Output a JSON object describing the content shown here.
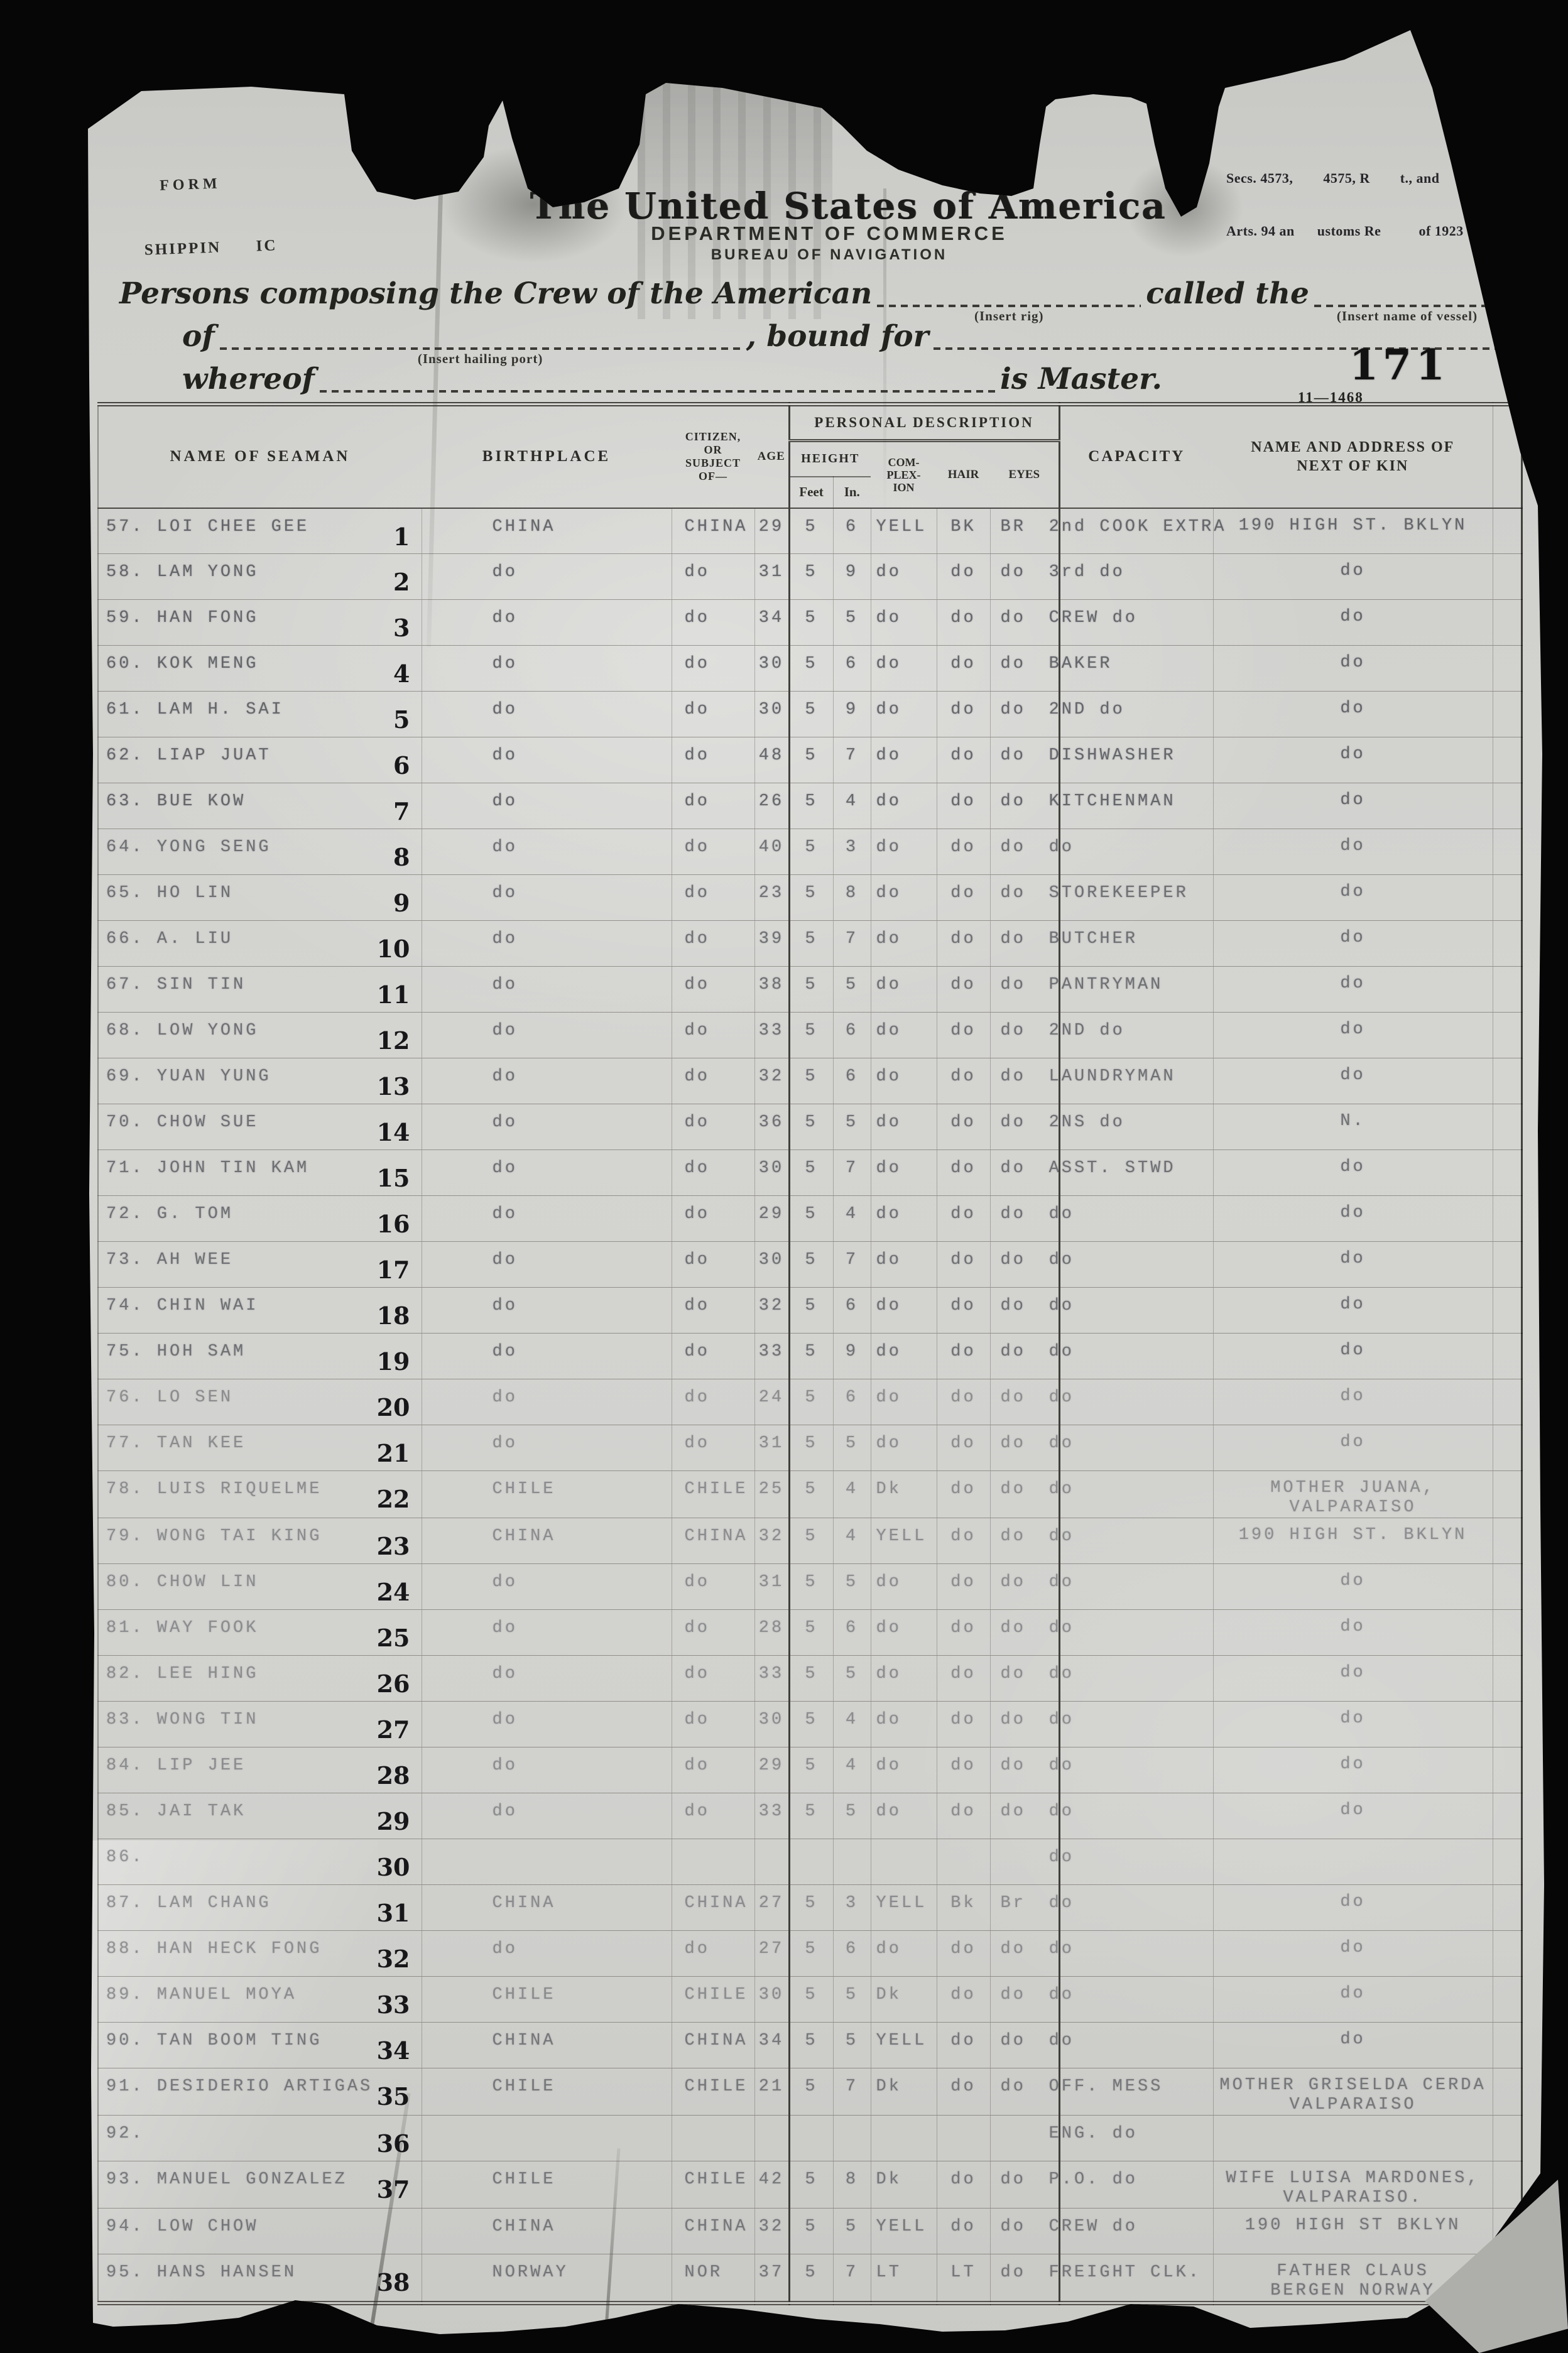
{
  "page": {
    "background": "#060606",
    "paper_color": "#d0d0cc",
    "page_number": "171",
    "form_code": "11—1468"
  },
  "stamps": {
    "form_line1": "FORM",
    "form_line2": "SHIPPIN      IC",
    "regs_line1": "Secs. 4573,        4575, R        t., and",
    "regs_line2": "Arts. 94 an      ustoms Re          of 1923"
  },
  "letterhead": {
    "title": "The United States of America",
    "department": "DEPARTMENT OF COMMERCE",
    "bureau": "BUREAU OF NAVIGATION"
  },
  "preamble": {
    "line1_pre": "Persons composing the Crew of the American",
    "insert_rig": "(Insert rig)",
    "line1_mid": "called the",
    "insert_vessel": "(Insert name of vessel)",
    "line2_pre": "of",
    "insert_port": "(Insert hailing port)",
    "line2_mid": ", bound for",
    "line3_pre": "whereof",
    "line3_end": "is Master."
  },
  "table": {
    "headers": {
      "name": "NAME OF SEAMAN",
      "birthplace": "BIRTHPLACE",
      "citizen": "CITIZEN,\nOR\nSUBJECT\nOF—",
      "age": "AGE",
      "personal": "PERSONAL DESCRIPTION",
      "height": "HEIGHT",
      "feet": "Feet",
      "inches": "In.",
      "complexion": "COM-\nPLEX-\nION",
      "hair": "HAIR",
      "eyes": "EYES",
      "capacity": "CAPACITY",
      "kin": "NAME AND ADDRESS OF\nNEXT OF KIN"
    },
    "rows": [
      {
        "name": "57. LOI CHEE GEE",
        "seq": "1",
        "birthplace": "CHINA",
        "citizen": "CHINA",
        "age": "29",
        "feet": "5",
        "inches": "6",
        "complexion": "YELL",
        "hair": "BK",
        "eyes": "BR",
        "capacity": "2nd COOK EXTRA",
        "kin": "190 HIGH ST. BKLYN"
      },
      {
        "name": "58. LAM YONG",
        "seq": "2",
        "birthplace": "do",
        "citizen": "do",
        "age": "31",
        "feet": "5",
        "inches": "9",
        "complexion": "do",
        "hair": "do",
        "eyes": "do",
        "capacity": "3rd do",
        "kin": "do"
      },
      {
        "name": "59. HAN FONG",
        "seq": "3",
        "birthplace": "do",
        "citizen": "do",
        "age": "34",
        "feet": "5",
        "inches": "5",
        "complexion": "do",
        "hair": "do",
        "eyes": "do",
        "capacity": "CREW do",
        "kin": "do"
      },
      {
        "name": "60. KOK MENG",
        "seq": "4",
        "birthplace": "do",
        "citizen": "do",
        "age": "30",
        "feet": "5",
        "inches": "6",
        "complexion": "do",
        "hair": "do",
        "eyes": "do",
        "capacity": "BAKER",
        "kin": "do"
      },
      {
        "name": "61. LAM H. SAI",
        "seq": "5",
        "birthplace": "do",
        "citizen": "do",
        "age": "30",
        "feet": "5",
        "inches": "9",
        "complexion": "do",
        "hair": "do",
        "eyes": "do",
        "capacity": "2ND do",
        "kin": "do"
      },
      {
        "name": "62. LIAP JUAT",
        "seq": "6",
        "birthplace": "do",
        "citizen": "do",
        "age": "48",
        "feet": "5",
        "inches": "7",
        "complexion": "do",
        "hair": "do",
        "eyes": "do",
        "capacity": "DISHWASHER",
        "kin": "do"
      },
      {
        "name": "63. BUE KOW",
        "seq": "7",
        "birthplace": "do",
        "citizen": "do",
        "age": "26",
        "feet": "5",
        "inches": "4",
        "complexion": "do",
        "hair": "do",
        "eyes": "do",
        "capacity": "KITCHENMAN",
        "kin": "do"
      },
      {
        "name": "64. YONG SENG",
        "seq": "8",
        "birthplace": "do",
        "citizen": "do",
        "age": "40",
        "feet": "5",
        "inches": "3",
        "complexion": "do",
        "hair": "do",
        "eyes": "do",
        "capacity": "do",
        "kin": "do"
      },
      {
        "name": "65. HO LIN",
        "seq": "9",
        "birthplace": "do",
        "citizen": "do",
        "age": "23",
        "feet": "5",
        "inches": "8",
        "complexion": "do",
        "hair": "do",
        "eyes": "do",
        "capacity": "STOREKEEPER",
        "kin": "do"
      },
      {
        "name": "66. A. LIU",
        "seq": "10",
        "birthplace": "do",
        "citizen": "do",
        "age": "39",
        "feet": "5",
        "inches": "7",
        "complexion": "do",
        "hair": "do",
        "eyes": "do",
        "capacity": "BUTCHER",
        "kin": "do"
      },
      {
        "name": "67. SIN TIN",
        "seq": "11",
        "birthplace": "do",
        "citizen": "do",
        "age": "38",
        "feet": "5",
        "inches": "5",
        "complexion": "do",
        "hair": "do",
        "eyes": "do",
        "capacity": "PANTRYMAN",
        "kin": "do"
      },
      {
        "name": "68. LOW YONG",
        "seq": "12",
        "birthplace": "do",
        "citizen": "do",
        "age": "33",
        "feet": "5",
        "inches": "6",
        "complexion": "do",
        "hair": "do",
        "eyes": "do",
        "capacity": "2ND do",
        "kin": "do"
      },
      {
        "name": "69. YUAN YUNG",
        "seq": "13",
        "birthplace": "do",
        "citizen": "do",
        "age": "32",
        "feet": "5",
        "inches": "6",
        "complexion": "do",
        "hair": "do",
        "eyes": "do",
        "capacity": "LAUNDRYMAN",
        "kin": "do"
      },
      {
        "name": "70. CHOW SUE",
        "seq": "14",
        "birthplace": "do",
        "citizen": "do",
        "age": "36",
        "feet": "5",
        "inches": "5",
        "complexion": "do",
        "hair": "do",
        "eyes": "do",
        "capacity": "2NS do",
        "kin": "N."
      },
      {
        "name": "71. JOHN TIN KAM",
        "seq": "15",
        "birthplace": "do",
        "citizen": "do",
        "age": "30",
        "feet": "5",
        "inches": "7",
        "complexion": "do",
        "hair": "do",
        "eyes": "do",
        "capacity": "ASST. STWD",
        "kin": "do"
      },
      {
        "name": "72. G. TOM",
        "seq": "16",
        "birthplace": "do",
        "citizen": "do",
        "age": "29",
        "feet": "5",
        "inches": "4",
        "complexion": "do",
        "hair": "do",
        "eyes": "do",
        "capacity": "do",
        "kin": "do"
      },
      {
        "name": "73. AH WEE",
        "seq": "17",
        "birthplace": "do",
        "citizen": "do",
        "age": "30",
        "feet": "5",
        "inches": "7",
        "complexion": "do",
        "hair": "do",
        "eyes": "do",
        "capacity": "do",
        "kin": "do"
      },
      {
        "name": "74. CHIN WAI",
        "seq": "18",
        "birthplace": "do",
        "citizen": "do",
        "age": "32",
        "feet": "5",
        "inches": "6",
        "complexion": "do",
        "hair": "do",
        "eyes": "do",
        "capacity": "do",
        "kin": "do"
      },
      {
        "name": "75. HOH SAM",
        "seq": "19",
        "birthplace": "do",
        "citizen": "do",
        "age": "33",
        "feet": "5",
        "inches": "9",
        "complexion": "do",
        "hair": "do",
        "eyes": "do",
        "capacity": "do",
        "kin": "do"
      },
      {
        "name": "76. LO SEN",
        "seq": "20",
        "birthplace": "do",
        "citizen": "do",
        "age": "24",
        "feet": "5",
        "inches": "6",
        "complexion": "do",
        "hair": "do",
        "eyes": "do",
        "capacity": "do",
        "kin": "do"
      },
      {
        "name": "77. TAN KEE",
        "seq": "21",
        "birthplace": "do",
        "citizen": "do",
        "age": "31",
        "feet": "5",
        "inches": "5",
        "complexion": "do",
        "hair": "do",
        "eyes": "do",
        "capacity": "do",
        "kin": "do"
      },
      {
        "name": "78. LUIS RIQUELME",
        "seq": "22",
        "birthplace": "CHILE",
        "citizen": "CHILE",
        "age": "25",
        "feet": "5",
        "inches": "4",
        "complexion": "Dk",
        "hair": "do",
        "eyes": "do",
        "capacity": "do",
        "kin": "MOTHER JUANA,\nVALPARAISO"
      },
      {
        "name": "79. WONG TAI KING",
        "seq": "23",
        "birthplace": "CHINA",
        "citizen": "CHINA",
        "age": "32",
        "feet": "5",
        "inches": "4",
        "complexion": "YELL",
        "hair": "do",
        "eyes": "do",
        "capacity": "do",
        "kin": "190 HIGH ST. BKLYN"
      },
      {
        "name": "80. CHOW LIN",
        "seq": "24",
        "birthplace": "do",
        "citizen": "do",
        "age": "31",
        "feet": "5",
        "inches": "5",
        "complexion": "do",
        "hair": "do",
        "eyes": "do",
        "capacity": "do",
        "kin": "do"
      },
      {
        "name": "81. WAY FOOK",
        "seq": "25",
        "birthplace": "do",
        "citizen": "do",
        "age": "28",
        "feet": "5",
        "inches": "6",
        "complexion": "do",
        "hair": "do",
        "eyes": "do",
        "capacity": "do",
        "kin": "do"
      },
      {
        "name": "82. LEE HING",
        "seq": "26",
        "birthplace": "do",
        "citizen": "do",
        "age": "33",
        "feet": "5",
        "inches": "5",
        "complexion": "do",
        "hair": "do",
        "eyes": "do",
        "capacity": "do",
        "kin": "do"
      },
      {
        "name": "83. WONG TIN",
        "seq": "27",
        "birthplace": "do",
        "citizen": "do",
        "age": "30",
        "feet": "5",
        "inches": "4",
        "complexion": "do",
        "hair": "do",
        "eyes": "do",
        "capacity": "do",
        "kin": "do"
      },
      {
        "name": "84. LIP JEE",
        "seq": "28",
        "birthplace": "do",
        "citizen": "do",
        "age": "29",
        "feet": "5",
        "inches": "4",
        "complexion": "do",
        "hair": "do",
        "eyes": "do",
        "capacity": "do",
        "kin": "do"
      },
      {
        "name": "85. JAI TAK",
        "seq": "29",
        "birthplace": "do",
        "citizen": "do",
        "age": "33",
        "feet": "5",
        "inches": "5",
        "complexion": "do",
        "hair": "do",
        "eyes": "do",
        "capacity": "do",
        "kin": "do"
      },
      {
        "name": "86.",
        "seq": "30",
        "birthplace": "",
        "citizen": "",
        "age": "",
        "feet": "",
        "inches": "",
        "complexion": "",
        "hair": "",
        "eyes": "",
        "capacity": "do",
        "kin": ""
      },
      {
        "name": "87. LAM CHANG",
        "seq": "31",
        "birthplace": "CHINA",
        "citizen": "CHINA",
        "age": "27",
        "feet": "5",
        "inches": "3",
        "complexion": "YELL",
        "hair": "Bk",
        "eyes": "Br",
        "capacity": "do",
        "kin": "do"
      },
      {
        "name": "88. HAN HECK FONG",
        "seq": "32",
        "birthplace": "do",
        "citizen": "do",
        "age": "27",
        "feet": "5",
        "inches": "6",
        "complexion": "do",
        "hair": "do",
        "eyes": "do",
        "capacity": "do",
        "kin": "do"
      },
      {
        "name": "89. MANUEL MOYA",
        "seq": "33",
        "birthplace": "CHILE",
        "citizen": "CHILE",
        "age": "30",
        "feet": "5",
        "inches": "5",
        "complexion": "Dk",
        "hair": "do",
        "eyes": "do",
        "capacity": "do",
        "kin": "do"
      },
      {
        "name": "90. TAN BOOM TING",
        "seq": "34",
        "birthplace": "CHINA",
        "citizen": "CHINA",
        "age": "34",
        "feet": "5",
        "inches": "5",
        "complexion": "YELL",
        "hair": "do",
        "eyes": "do",
        "capacity": "do",
        "kin": "do"
      },
      {
        "name": "91. DESIDERIO ARTIGAS",
        "seq": "35",
        "birthplace": "CHILE",
        "citizen": "CHILE",
        "age": "21",
        "feet": "5",
        "inches": "7",
        "complexion": "Dk",
        "hair": "do",
        "eyes": "do",
        "capacity": "OFF. MESS",
        "kin": "MOTHER GRISELDA CERDA\nVALPARAISO"
      },
      {
        "name": "92.",
        "seq": "36",
        "birthplace": "",
        "citizen": "",
        "age": "",
        "feet": "",
        "inches": "",
        "complexion": "",
        "hair": "",
        "eyes": "",
        "capacity": "ENG. do",
        "kin": ""
      },
      {
        "name": "93. MANUEL GONZALEZ",
        "seq": "37",
        "birthplace": "CHILE",
        "citizen": "CHILE",
        "age": "42",
        "feet": "5",
        "inches": "8",
        "complexion": "Dk",
        "hair": "do",
        "eyes": "do",
        "capacity": "P.O. do",
        "kin": "WIFE LUISA MARDONES,\nVALPARAISO."
      },
      {
        "name": "94. LOW CHOW",
        "seq": "",
        "birthplace": "CHINA",
        "citizen": "CHINA",
        "age": "32",
        "feet": "5",
        "inches": "5",
        "complexion": "YELL",
        "hair": "do",
        "eyes": "do",
        "capacity": "CREW do",
        "kin": "190 HIGH ST BKLYN"
      },
      {
        "name": "95. HANS HANSEN",
        "seq": "38",
        "birthplace": "NORWAY",
        "citizen": "NOR",
        "age": "37",
        "feet": "5",
        "inches": "7",
        "complexion": "LT",
        "hair": "LT",
        "eyes": "do",
        "capacity": "FREIGHT CLK.",
        "kin": "FATHER CLAUS\nBERGEN NORWAY"
      }
    ]
  }
}
